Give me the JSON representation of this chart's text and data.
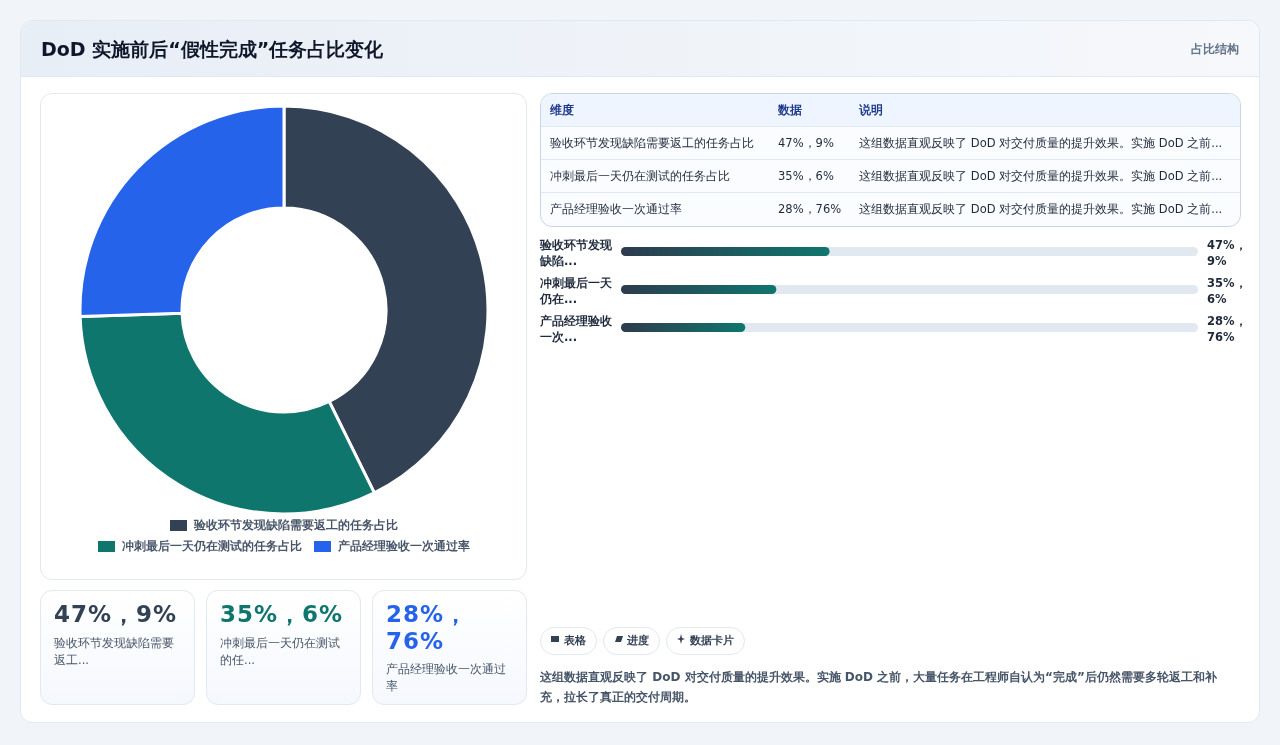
{
  "chart_data": [
    {
      "type": "donut",
      "title": "DoD 实施前后“假性完成”任务占比变化",
      "categories": [
        "验收环节发现缺陷需要返工的任务占比",
        "冲刺最后一天仍在测试的任务占比",
        "产品经理验收一次通过率"
      ],
      "values": [
        42.7,
        31.8,
        25.5
      ],
      "colors": [
        "#334155",
        "#0f766e",
        "#2563eb"
      ],
      "legend": "bottom"
    },
    {
      "type": "bar",
      "orientation": "horizontal",
      "categories": [
        "验收环节发现缺陷...",
        "冲刺最后一天仍在...",
        "产品经理验收一次..."
      ],
      "values": [
        47,
        35,
        28
      ],
      "value_labels": [
        "47%，9%",
        "35%，6%",
        "28%，76%"
      ],
      "xlim": [
        0,
        130
      ],
      "color": "#0f766e"
    },
    {
      "type": "other",
      "annotations": [
        "维度",
        "数据",
        "说明",
        "验收环节发现缺陷需要返工的任务占比",
        "47%，9%",
        "这组数据直观反映了 DoD 对交付质量的提升效果。实施 DoD 之前...",
        "冲刺最后一天仍在测试的任务占比",
        "35%，6%",
        "这组数据直观反映了 DoD 对交付质量的提升效果。实施 DoD 之前...",
        "产品经理验收一次通过率",
        "28%，76%",
        "这组数据直观反映了 DoD 对交付质量的提升效果。实施 DoD 之前...",
        "47%，9%",
        "验收环节发现缺陷需要返工...",
        "35%，6%",
        "冲刺最后一天仍在测试的任...",
        "28%，76%",
        "产品经理验收一次通过率",
        "表格",
        "进度",
        "数据卡片",
        "这组数据直观反映了 DoD 对交付质量的提升效果。实施 DoD 之前，大量任务在工程师自认为“完成”后仍然需要多轮返工和补充，拉长了真正的交付周期。",
        "占比结构"
      ]
    }
  ]
}
